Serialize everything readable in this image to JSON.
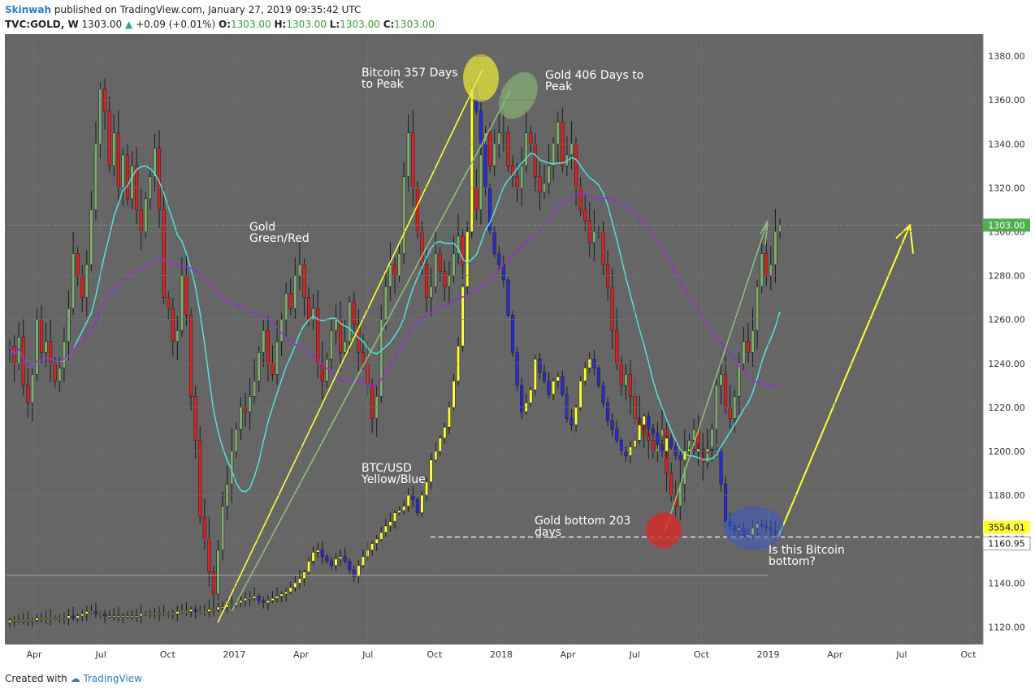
{
  "header": {
    "author": "Skinwah",
    "published_text": "published on TradingView.com, January 27, 2019 09:35:42 UTC",
    "symbol": "TVC:GOLD, W",
    "last": "1303.00",
    "change": "+0.09 (+0.01%)",
    "o_label": "O:",
    "o_value": "1303.00",
    "h_label": "H:",
    "h_value": "1303.00",
    "l_label": "L:",
    "l_value": "1303.00",
    "c_label": "C:",
    "c_value": "1303.00"
  },
  "footer": {
    "created_with": "Created with",
    "brand": "TradingView"
  },
  "colors": {
    "panel_bg": "#666666",
    "gold_up": "#7fae6b",
    "gold_down": "#e0201d",
    "btc_up": "#ffff33",
    "btc_down": "#2a2ad4",
    "ma_short": "#4fe3e3",
    "ma_long": "#9a2bd6",
    "yellow_line": "#ffff33",
    "green_line": "#8fc07a",
    "last_price_tag": "#4caf50"
  },
  "chart_data": {
    "type": "candlestick",
    "title": "",
    "y_axis": {
      "range": [
        1112,
        1390
      ],
      "ticks": [
        1120,
        1140,
        1160,
        1180,
        1200,
        1220,
        1240,
        1260,
        1280,
        1300,
        1320,
        1340,
        1360,
        1380
      ]
    },
    "x_axis": {
      "ticks": [
        "Apr",
        "Jul",
        "Oct",
        "2017",
        "Apr",
        "Jul",
        "Oct",
        "2018",
        "Apr",
        "Jul",
        "Oct",
        "2019",
        "Apr",
        "Jul",
        "Oct"
      ]
    },
    "price_tags": [
      {
        "label": "1303.00",
        "value": 1303.0
      },
      {
        "label": "3554.01",
        "value": 1163.9
      },
      {
        "label": "1160.95",
        "value": 1160.95
      }
    ],
    "annotations": [
      {
        "text": "Bitcoin 357 Days\nto Peak"
      },
      {
        "text": "Gold 406 Days to\nPeak"
      },
      {
        "text": "Gold\nGreen/Red"
      },
      {
        "text": "BTC/USD\nYellow/Blue"
      },
      {
        "text": "Gold bottom 203\ndays"
      },
      {
        "text": "Is this Bitcoin\nbottom?"
      }
    ],
    "series": [
      {
        "name": "Gold",
        "type": "candlestick",
        "close": [
          1248,
          1240,
          1252,
          1230,
          1222,
          1235,
          1260,
          1245,
          1250,
          1240,
          1232,
          1238,
          1250,
          1265,
          1290,
          1280,
          1270,
          1285,
          1310,
          1340,
          1365,
          1355,
          1330,
          1345,
          1320,
          1335,
          1315,
          1330,
          1310,
          1300,
          1315,
          1325,
          1338,
          1310,
          1270,
          1265,
          1250,
          1255,
          1280,
          1262,
          1225,
          1205,
          1170,
          1160,
          1145,
          1135,
          1155,
          1175,
          1185,
          1200,
          1210,
          1220,
          1218,
          1225,
          1232,
          1245,
          1255,
          1240,
          1235,
          1250,
          1260,
          1272,
          1265,
          1280,
          1285,
          1270,
          1260,
          1265,
          1240,
          1232,
          1242,
          1255,
          1260,
          1245,
          1250,
          1268,
          1258,
          1245,
          1240,
          1230,
          1215,
          1225,
          1260,
          1275,
          1285,
          1280,
          1290,
          1325,
          1345,
          1320,
          1300,
          1285,
          1270,
          1275,
          1290,
          1282,
          1275,
          1280,
          1290,
          1298,
          1285,
          1300,
          1320,
          1310,
          1335,
          1345,
          1330,
          1340,
          1345,
          1345,
          1330,
          1325,
          1320,
          1330,
          1345,
          1340,
          1325,
          1318,
          1322,
          1330,
          1340,
          1350,
          1330,
          1335,
          1340,
          1320,
          1310,
          1305,
          1295,
          1300,
          1300,
          1285,
          1275,
          1255,
          1240,
          1230,
          1235,
          1225,
          1215,
          1212,
          1208,
          1205,
          1200,
          1205,
          1210,
          1190,
          1180,
          1175,
          1185,
          1200,
          1205,
          1210,
          1200,
          1195,
          1200,
          1210,
          1230,
          1235,
          1220,
          1215,
          1225,
          1240,
          1250,
          1245,
          1255,
          1275,
          1290,
          1280,
          1285,
          1300,
          1303
        ],
        "color_up": "#7fae6b",
        "color_down": "#e0201d"
      },
      {
        "name": "BTC/USD",
        "type": "candlestick",
        "close": [
          1123,
          1123,
          1123,
          1123,
          1123,
          1123,
          1124,
          1124,
          1124,
          1124,
          1124,
          1124,
          1124,
          1125,
          1124,
          1125,
          1126,
          1127,
          1127,
          1126,
          1126,
          1125,
          1125,
          1125,
          1125,
          1125,
          1125,
          1125,
          1125,
          1126,
          1126,
          1126,
          1126,
          1126,
          1126,
          1126,
          1126,
          1127,
          1127,
          1127,
          1128,
          1127,
          1127,
          1127,
          1128,
          1128,
          1129,
          1129,
          1130,
          1130,
          1131,
          1132,
          1133,
          1133,
          1134,
          1132,
          1131,
          1132,
          1133,
          1134,
          1135,
          1136,
          1138,
          1140,
          1142,
          1145,
          1150,
          1154,
          1155,
          1152,
          1150,
          1148,
          1151,
          1152,
          1150,
          1146,
          1143,
          1148,
          1152,
          1155,
          1158,
          1160,
          1163,
          1166,
          1168,
          1172,
          1173,
          1175,
          1180,
          1178,
          1172,
          1180,
          1186,
          1196,
          1200,
          1206,
          1211,
          1220,
          1232,
          1248,
          1275,
          1300,
          1365,
          1355,
          1340,
          1320,
          1300,
          1290,
          1285,
          1278,
          1262,
          1245,
          1230,
          1218,
          1222,
          1228,
          1242,
          1236,
          1232,
          1226,
          1232,
          1234,
          1226,
          1215,
          1212,
          1220,
          1232,
          1238,
          1242,
          1238,
          1230,
          1222,
          1214,
          1210,
          1205,
          1200,
          1198,
          1202,
          1205,
          1212,
          1216,
          1210,
          1208,
          1203,
          1200,
          1206,
          1202,
          1198,
          1196,
          1200,
          1201,
          1200,
          1201,
          1200,
          1201,
          1200,
          1200,
          1185,
          1168,
          1166,
          1164,
          1165,
          1161,
          1162,
          1165,
          1167,
          1166,
          1165,
          1164,
          1163,
          1164
        ],
        "color_up": "#ffff33",
        "color_down": "#2a2ad4"
      },
      {
        "name": "",
        "type": "line",
        "color": "#4fe3e3"
      },
      {
        "name": "",
        "type": "line",
        "color": "#9a2bd6"
      }
    ]
  }
}
